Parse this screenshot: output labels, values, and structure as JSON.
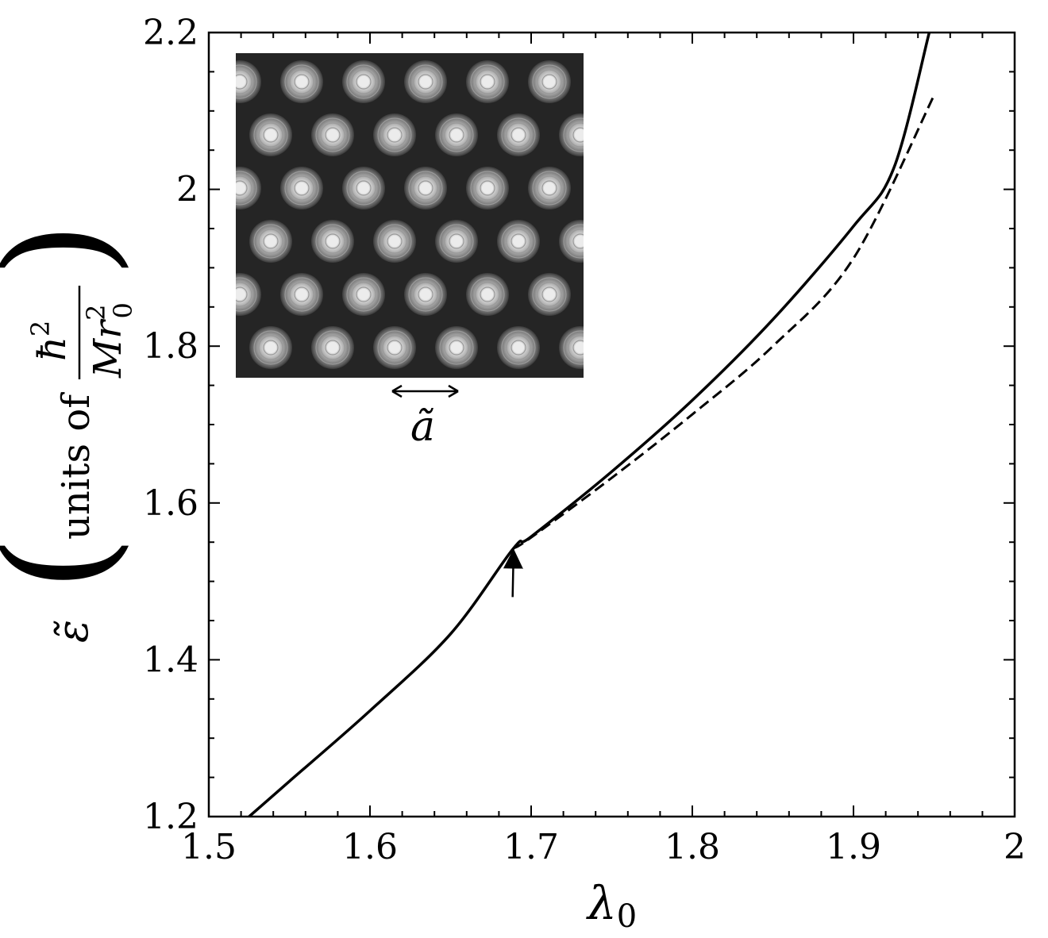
{
  "chart_data": {
    "type": "line",
    "xlabel": {
      "symbol": "λ",
      "subscript": "0"
    },
    "ylabel": {
      "symbol": "ε̃",
      "text": "units of",
      "numerator": {
        "symbol": "ħ",
        "superscript": "2"
      },
      "denominator": {
        "symbol": "Mr",
        "superscript": "2",
        "subscript": "0"
      }
    },
    "xlim": [
      1.5,
      2.0
    ],
    "ylim": [
      1.2,
      2.2
    ],
    "x_ticks": [
      "1.5",
      "1.6",
      "1.7",
      "1.8",
      "1.9",
      "2"
    ],
    "y_ticks": [
      "1.2",
      "1.4",
      "1.6",
      "1.8",
      "2",
      "2.2"
    ],
    "x_tick_values": [
      1.5,
      1.6,
      1.7,
      1.8,
      1.9,
      2.0
    ],
    "y_tick_values": [
      1.2,
      1.4,
      1.6,
      1.8,
      2.0,
      2.2
    ],
    "x_minor_step": 0.02,
    "y_minor_step": 0.05,
    "grid": false,
    "legend": "none",
    "series": [
      {
        "style": "solid",
        "x": [
          1.525,
          1.55,
          1.6,
          1.65,
          1.689,
          1.7,
          1.75,
          1.8,
          1.85,
          1.9,
          1.925,
          1.947
        ],
        "y": [
          1.2,
          1.245,
          1.335,
          1.433,
          1.542,
          1.557,
          1.64,
          1.731,
          1.834,
          1.953,
          2.027,
          2.2
        ]
      },
      {
        "style": "dashed",
        "x": [
          1.689,
          1.7,
          1.75,
          1.8,
          1.85,
          1.9,
          1.95
        ],
        "y": [
          1.542,
          1.556,
          1.632,
          1.713,
          1.8,
          1.912,
          2.12
        ]
      }
    ],
    "annotation_arrow": {
      "x": 1.689,
      "y_from": 1.48,
      "y_to": 1.535
    },
    "inset": {
      "description_label": "ã",
      "lattice": "hexagonal",
      "rows": 6
    }
  },
  "colors": {
    "line": "#000000",
    "inset_bg": "#252525",
    "blob_outer": "#555555",
    "blob_inner": "#e6e6e6"
  }
}
